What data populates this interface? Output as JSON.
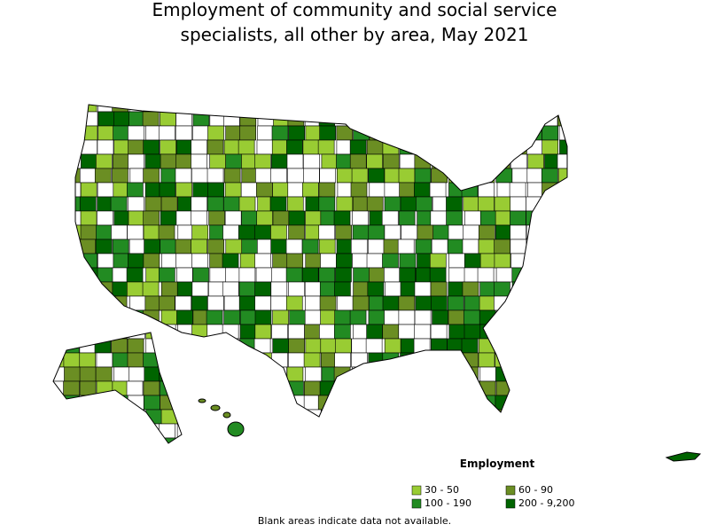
{
  "header": {
    "title_lines": [
      "Employment of community and social service",
      "specialists, all other by area, May 2021"
    ]
  },
  "legend": {
    "title": "Employment",
    "items": [
      {
        "label": "30 - 50",
        "color": "#99cc33"
      },
      {
        "label": "60 - 90",
        "color": "#6b8e23"
      },
      {
        "label": "100 - 190",
        "color": "#228b22"
      },
      {
        "label": "200 - 9,200",
        "color": "#006400"
      }
    ]
  },
  "footnote": "Blank areas indicate data not available."
}
